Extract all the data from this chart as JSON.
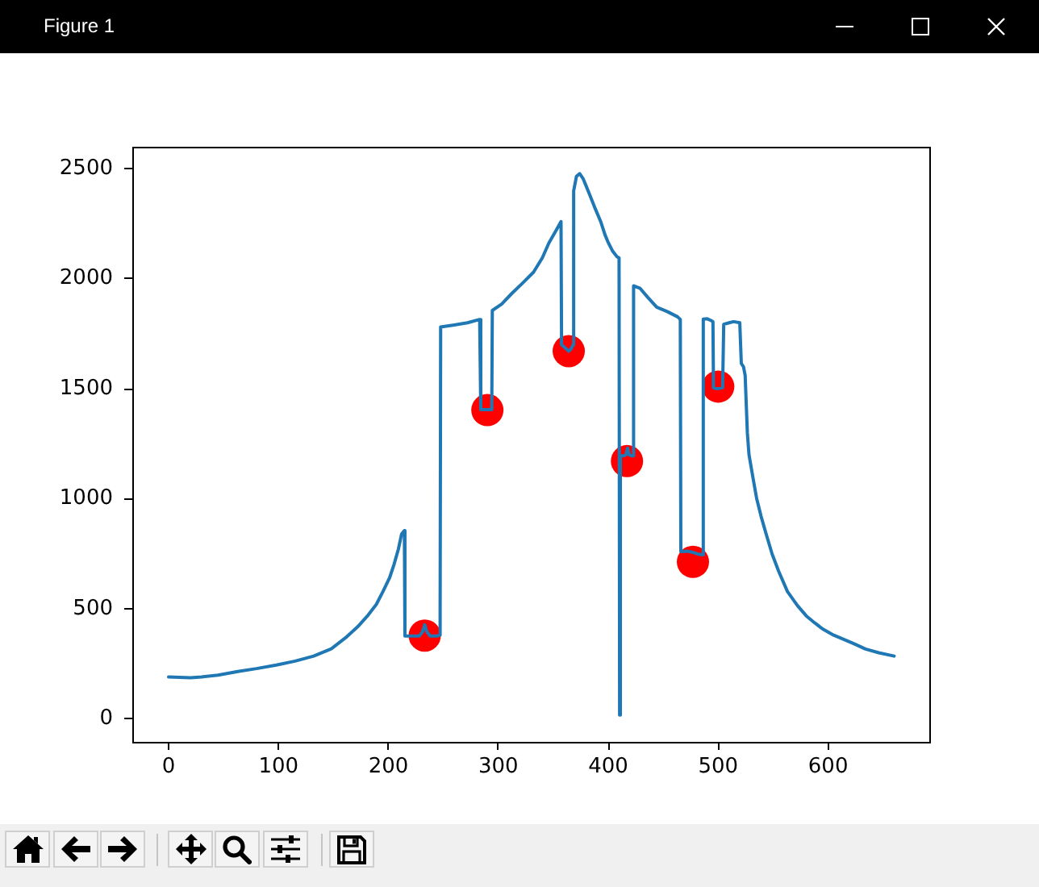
{
  "chart_data": {
    "type": "line",
    "title": "Figure 1",
    "xlim": [
      -33,
      692
    ],
    "xticks": [
      0,
      100,
      200,
      300,
      400,
      500,
      600
    ],
    "ylim": [
      -105,
      2600
    ],
    "yticks": [
      0,
      500,
      1000,
      1500,
      2000,
      2500
    ],
    "series": [
      {
        "color": "#1f77b4",
        "x": [
          0,
          10,
          20,
          30,
          45,
          63,
          80,
          98,
          115,
          132,
          148,
          161,
          172,
          181,
          189,
          195,
          201,
          205,
          209,
          212,
          214.5,
          215,
          220,
          228,
          231,
          233,
          235,
          238,
          244,
          247,
          247.5,
          260,
          272,
          283,
          284,
          289,
          294,
          294.5,
          303,
          312,
          322,
          332,
          340,
          346,
          352,
          357,
          357.5,
          362,
          364,
          366,
          368,
          368.5,
          371,
          374,
          377,
          380,
          383,
          388,
          393,
          397,
          400,
          404,
          408,
          409.8,
          410.3,
          411,
          414,
          416,
          417.5,
          419,
          421,
          422.5,
          423,
          429,
          436,
          444,
          454,
          463,
          465.5,
          466,
          472,
          478,
          482,
          485.5,
          486.4,
          490,
          493.5,
          495.2,
          495.7,
          499,
          504,
          505,
          510,
          514,
          519.6,
          521,
          523,
          524.5,
          526.5,
          528,
          531.8,
          535,
          539,
          543,
          549,
          555,
          563,
          572,
          580,
          588,
          595,
          605,
          615,
          624,
          634,
          646,
          660
        ],
        "values": [
          190,
          188,
          186,
          190,
          198,
          215,
          228,
          244,
          262,
          285,
          318,
          368,
          418,
          468,
          520,
          578,
          640,
          700,
          770,
          840,
          855,
          376,
          376,
          376,
          395,
          427,
          395,
          376,
          376,
          380,
          1781,
          1790,
          1800,
          1815,
          1405,
          1405,
          1405,
          1856,
          1885,
          1932,
          1980,
          2030,
          2095,
          2163,
          2215,
          2260,
          1700,
          1680,
          1671,
          1680,
          1700,
          2400,
          2465,
          2478,
          2456,
          2420,
          2383,
          2320,
          2261,
          2200,
          2164,
          2125,
          2100,
          2095,
          17,
          1195,
          1195,
          1200,
          1230,
          1200,
          1195,
          1195,
          1968,
          1956,
          1915,
          1871,
          1850,
          1827,
          1815,
          760,
          762,
          755,
          748,
          745,
          1817,
          1818,
          1810,
          1805,
          1505,
          1500,
          1505,
          1793,
          1800,
          1805,
          1800,
          1615,
          1600,
          1560,
          1300,
          1200,
          1090,
          1000,
          920,
          850,
          749,
          670,
          578,
          515,
          468,
          435,
          408,
          380,
          359,
          340,
          317,
          300,
          285
        ]
      },
      {
        "type": "scatter",
        "color": "#ff0000",
        "marker": "circle",
        "x": [
          233,
          290,
          364,
          417,
          477,
          500
        ],
        "values": [
          378,
          1403,
          1671,
          1171,
          713,
          1510
        ]
      }
    ]
  }
}
